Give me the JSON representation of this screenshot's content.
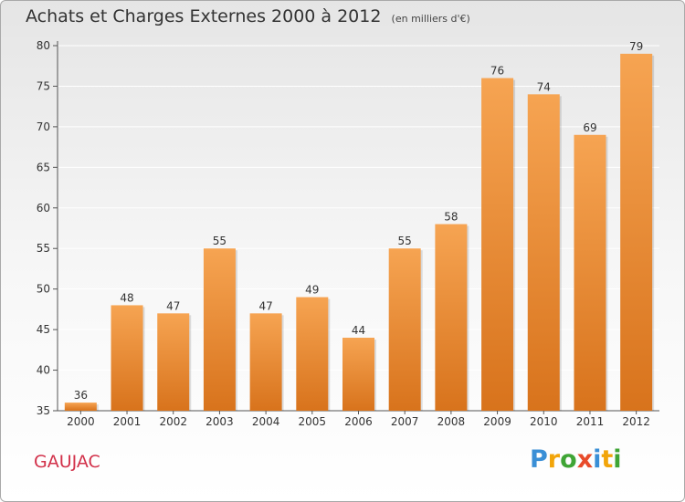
{
  "title": "Achats et Charges Externes 2000 à 2012",
  "unit_note": "(en milliers d'€)",
  "commune": "GAUJAC",
  "brand": {
    "letters": [
      "P",
      "r",
      "o",
      "x",
      "i",
      "t",
      "i"
    ],
    "colors": [
      "#3a8fd6",
      "#f2a50a",
      "#3fa535",
      "#e84b2a",
      "#3a8fd6",
      "#f2a50a",
      "#3fa535"
    ]
  },
  "colors": {
    "bar_top": "#f6a452",
    "bar_bottom": "#d8731c",
    "commune": "#d2314a"
  },
  "chart_data": {
    "type": "bar",
    "categories": [
      "2000",
      "2001",
      "2002",
      "2003",
      "2004",
      "2005",
      "2006",
      "2007",
      "2008",
      "2009",
      "2010",
      "2011",
      "2012"
    ],
    "values": [
      36,
      48,
      47,
      55,
      47,
      49,
      44,
      55,
      58,
      76,
      74,
      69,
      79
    ],
    "ylim": [
      35,
      80
    ],
    "yticks": [
      35,
      40,
      45,
      50,
      55,
      60,
      65,
      70,
      75,
      80
    ],
    "grid": true,
    "data_labels": true
  }
}
